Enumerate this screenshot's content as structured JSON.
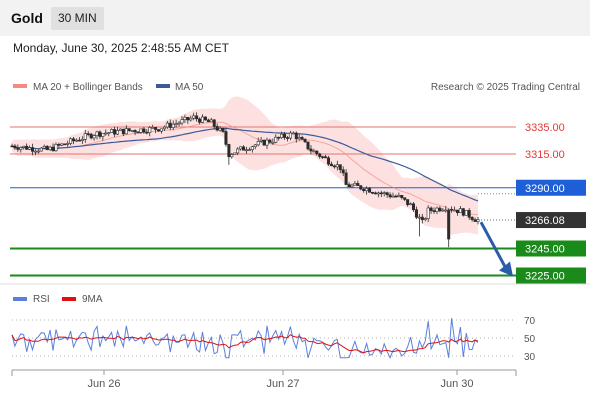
{
  "header": {
    "title": "Gold",
    "timeframe": "30 MIN",
    "timestamp": "Monday, June 30, 2025 2:48:55 AM CET"
  },
  "legend": {
    "bollinger": "MA 20 + Bollinger Bands",
    "ma50": "MA 50",
    "copyright": "Research © 2025 Trading Central",
    "rsi": "RSI",
    "rsi_ma": "9MA"
  },
  "colors": {
    "bollinger": "#f28b82",
    "bollinger_fill": "#fddcdc",
    "ma50": "#3c5a9a",
    "resistance": "#e57373",
    "pivot": "#1e5fd8",
    "support": "#1a8a1a",
    "price_tag": "#333333",
    "arrow": "#2a5cab",
    "rsi": "#5b7fdb",
    "rsi_ma": "#e01010",
    "candle": "#2b2b2b"
  },
  "chart_data": {
    "type": "candlestick",
    "x_ticks": [
      "Jun 26",
      "Jun 27",
      "Jun 30"
    ],
    "y_range": [
      3217,
      3357
    ],
    "levels": [
      {
        "label": "3335.00",
        "value": 3335,
        "kind": "resistance"
      },
      {
        "label": "3315.00",
        "value": 3315,
        "kind": "resistance"
      },
      {
        "label": "3290.00",
        "value": 3290,
        "kind": "pivot"
      },
      {
        "label": "3245.00",
        "value": 3245,
        "kind": "support"
      },
      {
        "label": "3225.00",
        "value": 3225,
        "kind": "support"
      }
    ],
    "last_price": {
      "label": "3266.08",
      "value": 3266.08
    },
    "forecast_arrow": {
      "from": 3266,
      "to": 3225
    },
    "rsi": {
      "levels": [
        70,
        50,
        30
      ],
      "range": [
        20,
        80
      ]
    }
  }
}
